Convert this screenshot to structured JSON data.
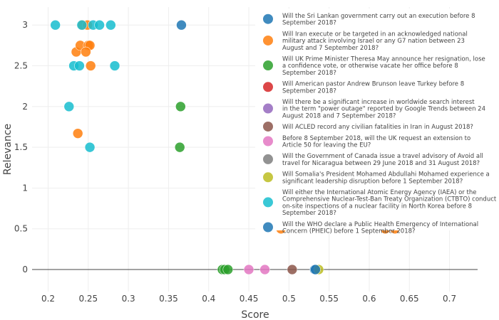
{
  "chart_data": {
    "type": "scatter",
    "xlabel": "Score",
    "ylabel": "Relevance",
    "xlim": [
      0.18,
      0.735
    ],
    "ylim": [
      -0.27,
      3.22
    ],
    "x_ticks": [
      0.2,
      0.25,
      0.3,
      0.35,
      0.4,
      0.45,
      0.5,
      0.55,
      0.6,
      0.65,
      0.7
    ],
    "x_tick_labels": [
      "0.2",
      "0.25",
      "0.3",
      "0.35",
      "0.4",
      "0.45",
      "0.5",
      "0.55",
      "0.6",
      "0.65",
      "0.7"
    ],
    "y_ticks": [
      0,
      0.5,
      1,
      1.5,
      2,
      2.5,
      3
    ],
    "y_tick_labels": [
      "0",
      "0.5",
      "1",
      "1.5",
      "2",
      "2.5",
      "3"
    ],
    "grid": true,
    "legend_position": "top-right",
    "series": [
      {
        "name": "Will the Sri Lankan government carry out an execution before 8 September 2018?",
        "color": "#1f77b4",
        "points": [
          [
            0.366,
            3
          ],
          [
            0.532,
            0
          ]
        ]
      },
      {
        "name": "Will Iran execute or be targeted in an acknowledged national military attack involving Israel or any G7 nation between 23 August and 7 September 2018?",
        "color": "#ff7f0e",
        "points": [
          [
            0.243,
            3
          ],
          [
            0.249,
            3
          ],
          [
            0.235,
            2.67
          ],
          [
            0.24,
            2.75
          ],
          [
            0.25,
            2.75
          ],
          [
            0.252,
            2.75
          ],
          [
            0.247,
            2.67
          ],
          [
            0.253,
            2.5
          ],
          [
            0.237,
            1.67
          ],
          [
            0.49,
            0.5
          ],
          [
            0.62,
            0.5
          ],
          [
            0.632,
            0.5
          ]
        ]
      },
      {
        "name": "Will UK Prime Minister Theresa May announce her resignation, lose a confidence vote, or otherwise vacate her office before 8 September 2018?",
        "color": "#2ca02c",
        "points": [
          [
            0.365,
            2
          ],
          [
            0.364,
            1.5
          ],
          [
            0.417,
            0
          ],
          [
            0.42,
            0
          ],
          [
            0.424,
            0
          ]
        ]
      },
      {
        "name": "Will American pastor Andrew Brunson leave Turkey before 8 September 2018?",
        "color": "#d62728",
        "points": []
      },
      {
        "name": "Will there be a significant increase in worldwide search interest in the term \"power outage\" reported by Google Trends between 24 August 2018 and 7 September 2018?",
        "color": "#9467bd",
        "points": []
      },
      {
        "name": "Will ACLED record any civilian fatalities in Iran in August 2018?",
        "color": "#8c564b",
        "points": [
          [
            0.504,
            0
          ]
        ]
      },
      {
        "name": "Before 8 September 2018, will the UK request an extension to Article 50 for leaving the EU?",
        "color": "#e377c2",
        "points": [
          [
            0.45,
            0
          ],
          [
            0.47,
            0
          ]
        ]
      },
      {
        "name": "Will the Government of Canada issue a travel advisory of Avoid all travel for Nicaragua between 29 June 2018 and 31 August 2018?",
        "color": "#7f7f7f",
        "points": []
      },
      {
        "name": "Will Somalia's President Mohamed Abdullahi Mohamed experience a significant leadership disruption before 1 September 2018?",
        "color": "#bcbd22",
        "points": [
          [
            0.537,
            0
          ]
        ]
      },
      {
        "name": "Will either the International Atomic Energy Agency (IAEA) or the Comprehensive Nuclear-Test-Ban Treaty Organization (CTBTO) conduct on-site inspections of a nuclear facility in North Korea before 8 September 2018?",
        "color": "#17becf",
        "points": [
          [
            0.209,
            3
          ],
          [
            0.242,
            3
          ],
          [
            0.256,
            3
          ],
          [
            0.264,
            3
          ],
          [
            0.278,
            3
          ],
          [
            0.232,
            2.5
          ],
          [
            0.239,
            2.5
          ],
          [
            0.283,
            2.5
          ],
          [
            0.226,
            2
          ],
          [
            0.252,
            1.5
          ]
        ]
      },
      {
        "name": "Will the WHO declare a Public Health Emergency of International Concern (PHEIC) before 1 September 2018?",
        "color": "#1f77b4",
        "points": [
          [
            0.533,
            0
          ]
        ]
      }
    ]
  }
}
